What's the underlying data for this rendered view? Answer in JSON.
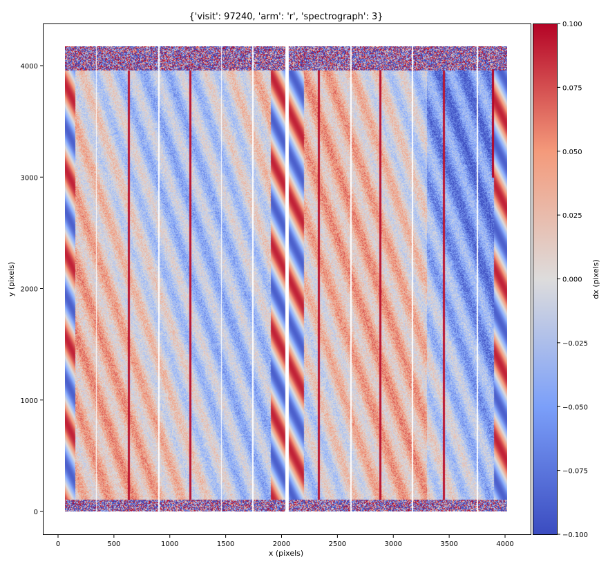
{
  "chart_data": {
    "type": "heatmap",
    "title": "{'visit': 97240, 'arm': 'r', 'spectrograph': 3}",
    "xlabel": "x (pixels)",
    "ylabel": "y (pixels)",
    "xlim": [
      -130,
      4230
    ],
    "ylim": [
      -200,
      4380
    ],
    "xticks": [
      "0",
      "500",
      "1000",
      "1500",
      "2000",
      "2500",
      "3000",
      "3500",
      "4000"
    ],
    "yticks": [
      "0",
      "1000",
      "2000",
      "3000",
      "4000"
    ],
    "colormap": "coolwarm",
    "colorbar": {
      "label": "dx (pixels)",
      "range": [
        -0.1,
        0.1
      ],
      "ticks": [
        "0.100",
        "0.075",
        "0.050",
        "0.025",
        "0.000",
        "−0.025",
        "−0.050",
        "−0.075",
        "−0.100"
      ]
    },
    "image_extent": {
      "x": [
        60,
        4020
      ],
      "y": [
        0,
        4176
      ]
    },
    "chip_gap_x": [
      2030,
      2060
    ],
    "grid": false
  }
}
